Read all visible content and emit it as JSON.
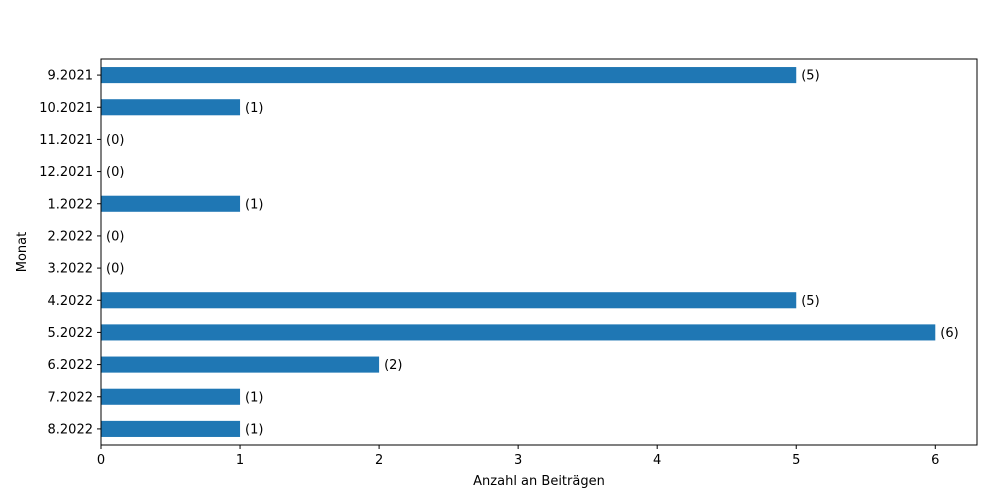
{
  "chart_data": {
    "type": "bar",
    "orientation": "horizontal",
    "categories": [
      "9.2021",
      "10.2021",
      "11.2021",
      "12.2021",
      "1.2022",
      "2.2022",
      "3.2022",
      "4.2022",
      "5.2022",
      "6.2022",
      "7.2022",
      "8.2022"
    ],
    "values": [
      5,
      1,
      0,
      0,
      1,
      0,
      0,
      5,
      6,
      2,
      1,
      1
    ],
    "data_labels": [
      "(5)",
      "(1)",
      "(0)",
      "(0)",
      "(1)",
      "(0)",
      "(0)",
      "(5)",
      "(6)",
      "(2)",
      "(1)",
      "(1)"
    ],
    "title": "",
    "xlabel": "Anzahl an Beiträgen",
    "ylabel": "Monat",
    "xlim": [
      0,
      6.3
    ],
    "xticks": [
      0,
      1,
      2,
      3,
      4,
      5,
      6
    ],
    "grid": false,
    "legend": "none",
    "bar_color": "#1f77b4"
  }
}
